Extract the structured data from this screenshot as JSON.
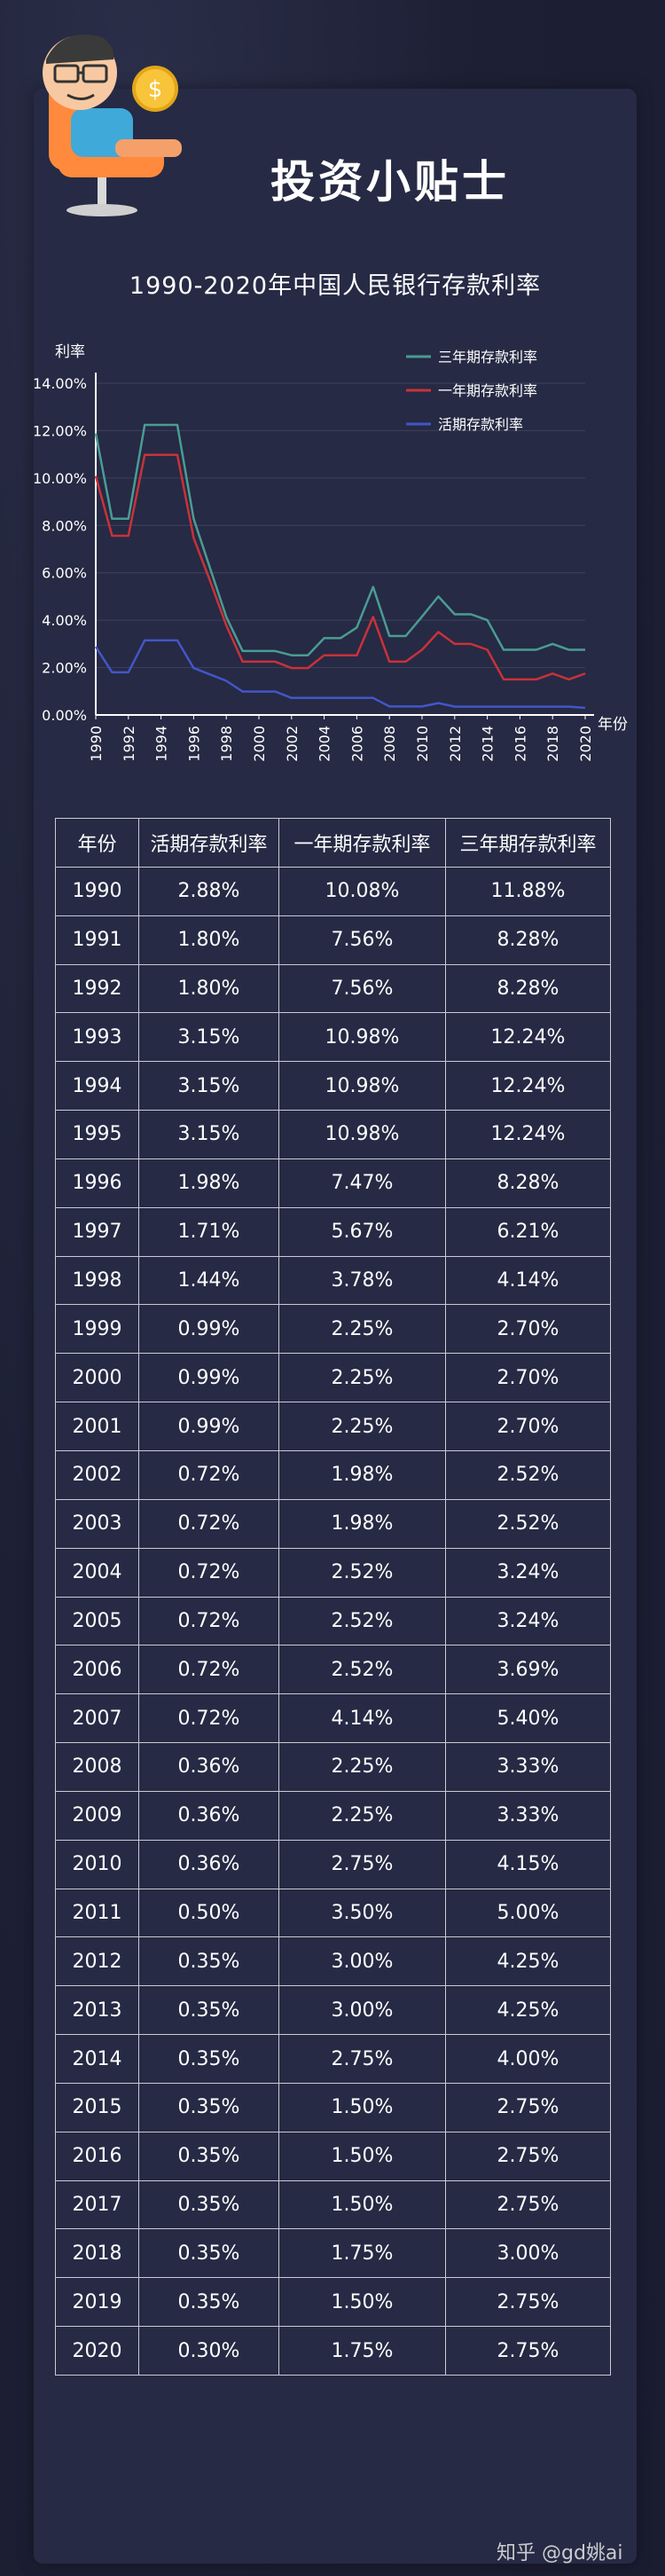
{
  "page": {
    "title": "投资小贴士",
    "chart_title": "1990-2020年中国人民银行存款利率",
    "watermark": "知乎 @gd姚ai"
  },
  "colors": {
    "three_year": "#4a9c93",
    "one_year": "#c8323a",
    "demand": "#4256c8",
    "axis": "#ffffff",
    "grid": "#3e425c"
  },
  "chart_data": {
    "type": "line",
    "title": "1990-2020年中国人民银行存款利率",
    "ylabel": "利率",
    "xlabel": "年份",
    "ylim": [
      0,
      14
    ],
    "ytick_labels": [
      "0.00%",
      "2.00%",
      "4.00%",
      "6.00%",
      "8.00%",
      "10.00%",
      "12.00%",
      "14.00%"
    ],
    "xtick_labels": [
      "1990",
      "1992",
      "1994",
      "1996",
      "1998",
      "2000",
      "2002",
      "2004",
      "2006",
      "2008",
      "2010",
      "2012",
      "2014",
      "2016",
      "2018",
      "2020"
    ],
    "legend_position": "top-right",
    "x": [
      1990,
      1991,
      1992,
      1993,
      1994,
      1995,
      1996,
      1997,
      1998,
      1999,
      2000,
      2001,
      2002,
      2003,
      2004,
      2005,
      2006,
      2007,
      2008,
      2009,
      2010,
      2011,
      2012,
      2013,
      2014,
      2015,
      2016,
      2017,
      2018,
      2019,
      2020
    ],
    "series": [
      {
        "name": "三年期存款利率",
        "key": "three_year",
        "values": [
          11.88,
          8.28,
          8.28,
          12.24,
          12.24,
          12.24,
          8.28,
          6.21,
          4.14,
          2.7,
          2.7,
          2.7,
          2.52,
          2.52,
          3.24,
          3.24,
          3.69,
          5.4,
          3.33,
          3.33,
          4.15,
          5.0,
          4.25,
          4.25,
          4.0,
          2.75,
          2.75,
          2.75,
          3.0,
          2.75,
          2.75
        ]
      },
      {
        "name": "一年期存款利率",
        "key": "one_year",
        "values": [
          10.08,
          7.56,
          7.56,
          10.98,
          10.98,
          10.98,
          7.47,
          5.67,
          3.78,
          2.25,
          2.25,
          2.25,
          1.98,
          1.98,
          2.52,
          2.52,
          2.52,
          4.14,
          2.25,
          2.25,
          2.75,
          3.5,
          3.0,
          3.0,
          2.75,
          1.5,
          1.5,
          1.5,
          1.75,
          1.5,
          1.75
        ]
      },
      {
        "name": "活期存款利率",
        "key": "demand",
        "values": [
          2.88,
          1.8,
          1.8,
          3.15,
          3.15,
          3.15,
          1.98,
          1.71,
          1.44,
          0.99,
          0.99,
          0.99,
          0.72,
          0.72,
          0.72,
          0.72,
          0.72,
          0.72,
          0.36,
          0.36,
          0.36,
          0.5,
          0.35,
          0.35,
          0.35,
          0.35,
          0.35,
          0.35,
          0.35,
          0.35,
          0.3
        ]
      }
    ]
  },
  "table": {
    "headers": [
      "年份",
      "活期存款利率",
      "一年期存款利率",
      "三年期存款利率"
    ],
    "rows": [
      [
        "1990",
        "2.88%",
        "10.08%",
        "11.88%"
      ],
      [
        "1991",
        "1.80%",
        "7.56%",
        "8.28%"
      ],
      [
        "1992",
        "1.80%",
        "7.56%",
        "8.28%"
      ],
      [
        "1993",
        "3.15%",
        "10.98%",
        "12.24%"
      ],
      [
        "1994",
        "3.15%",
        "10.98%",
        "12.24%"
      ],
      [
        "1995",
        "3.15%",
        "10.98%",
        "12.24%"
      ],
      [
        "1996",
        "1.98%",
        "7.47%",
        "8.28%"
      ],
      [
        "1997",
        "1.71%",
        "5.67%",
        "6.21%"
      ],
      [
        "1998",
        "1.44%",
        "3.78%",
        "4.14%"
      ],
      [
        "1999",
        "0.99%",
        "2.25%",
        "2.70%"
      ],
      [
        "2000",
        "0.99%",
        "2.25%",
        "2.70%"
      ],
      [
        "2001",
        "0.99%",
        "2.25%",
        "2.70%"
      ],
      [
        "2002",
        "0.72%",
        "1.98%",
        "2.52%"
      ],
      [
        "2003",
        "0.72%",
        "1.98%",
        "2.52%"
      ],
      [
        "2004",
        "0.72%",
        "2.52%",
        "3.24%"
      ],
      [
        "2005",
        "0.72%",
        "2.52%",
        "3.24%"
      ],
      [
        "2006",
        "0.72%",
        "2.52%",
        "3.69%"
      ],
      [
        "2007",
        "0.72%",
        "4.14%",
        "5.40%"
      ],
      [
        "2008",
        "0.36%",
        "2.25%",
        "3.33%"
      ],
      [
        "2009",
        "0.36%",
        "2.25%",
        "3.33%"
      ],
      [
        "2010",
        "0.36%",
        "2.75%",
        "4.15%"
      ],
      [
        "2011",
        "0.50%",
        "3.50%",
        "5.00%"
      ],
      [
        "2012",
        "0.35%",
        "3.00%",
        "4.25%"
      ],
      [
        "2013",
        "0.35%",
        "3.00%",
        "4.25%"
      ],
      [
        "2014",
        "0.35%",
        "2.75%",
        "4.00%"
      ],
      [
        "2015",
        "0.35%",
        "1.50%",
        "2.75%"
      ],
      [
        "2016",
        "0.35%",
        "1.50%",
        "2.75%"
      ],
      [
        "2017",
        "0.35%",
        "1.50%",
        "2.75%"
      ],
      [
        "2018",
        "0.35%",
        "1.75%",
        "3.00%"
      ],
      [
        "2019",
        "0.35%",
        "1.50%",
        "2.75%"
      ],
      [
        "2020",
        "0.30%",
        "1.75%",
        "2.75%"
      ]
    ]
  }
}
